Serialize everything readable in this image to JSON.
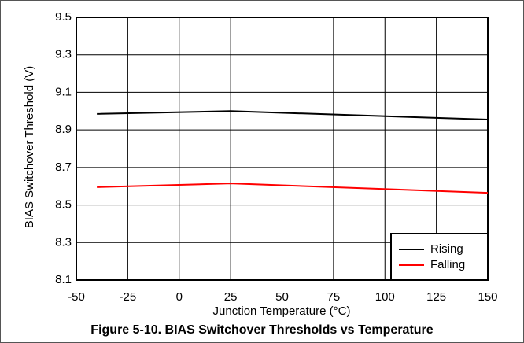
{
  "chart_data": {
    "type": "line",
    "title": "Figure 5-10. BIAS Switchover Thresholds vs Temperature",
    "x_label": "Junction Temperature (°C)",
    "y_label": "BIAS Switchover Threshold (V)",
    "x": [
      -40,
      25,
      150
    ],
    "series": [
      {
        "name": "Rising",
        "color": "#000000",
        "values": [
          8.985,
          9.0,
          8.955
        ]
      },
      {
        "name": "Falling",
        "color": "#ff0000",
        "values": [
          8.595,
          8.615,
          8.565
        ]
      }
    ],
    "xlim": [
      -50,
      150
    ],
    "xticks": [
      -50,
      -25,
      0,
      25,
      50,
      75,
      100,
      125,
      150
    ],
    "ylim": [
      8.1,
      9.5
    ],
    "yticks": [
      8.1,
      8.3,
      8.5,
      8.7,
      8.9,
      9.1,
      9.3,
      9.5
    ],
    "grid": true,
    "legend": "lower right"
  }
}
